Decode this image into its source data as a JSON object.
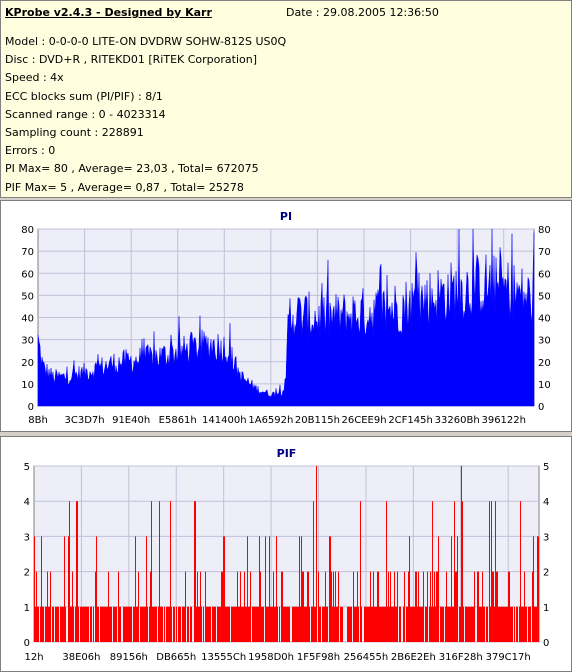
{
  "header": {
    "title": "KProbe v2.4.3 - Designed by Karr",
    "date": "Date : 29.08.2005 12:36:50"
  },
  "info_lines": [
    "Model : 0-0-0-0 LITE-ON DVDRW SOHW-812S  US0Q",
    "Disc : DVD+R , RITEKD01 [RiTEK Corporation]",
    "Speed : 4x",
    "ECC blocks sum (PI/PIF) : 8/1",
    "Scanned range : 0 - 4023314",
    "Sampling count : 228891",
    "Errors : 0",
    "PI Max= 80 , Average= 23,03 , Total= 672075",
    "PIF Max= 5 , Average= 0,87 , Total= 25278"
  ],
  "colors": {
    "pi_fill": "#0000ff",
    "pif_fill": "#ff0000",
    "plot_bg": "#eeeef8",
    "grid": "#c0c0d8"
  },
  "chart_data": [
    {
      "type": "area",
      "title": "PI",
      "xlabel": "",
      "ylabel": "",
      "ylim": [
        0,
        80
      ],
      "yticks": [
        0,
        10,
        20,
        30,
        40,
        50,
        60,
        70,
        80
      ],
      "xticks": [
        "8Bh",
        "3C3D7h",
        "91E40h",
        "E5861h",
        "141400h",
        "1A6592h",
        "20B115h",
        "26CEE9h",
        "2CF145h",
        "33260Bh",
        "396122h"
      ],
      "grid": true,
      "series": [
        {
          "x_fraction": [
            0.0,
            0.01,
            0.03,
            0.06,
            0.1,
            0.15,
            0.2,
            0.25,
            0.3,
            0.35,
            0.38,
            0.41,
            0.44,
            0.47,
            0.49,
            0.5,
            0.505,
            0.55,
            0.6,
            0.65,
            0.7,
            0.75,
            0.8,
            0.85,
            0.9,
            0.95,
            1.0
          ],
          "values": [
            34,
            20,
            15,
            15,
            18,
            22,
            24,
            26,
            29,
            32,
            30,
            15,
            9,
            6,
            7,
            12,
            48,
            46,
            46,
            48,
            50,
            53,
            57,
            60,
            63,
            60,
            55
          ]
        }
      ]
    },
    {
      "type": "bar",
      "title": "PIF",
      "xlabel": "",
      "ylabel": "",
      "ylim": [
        0,
        5
      ],
      "yticks": [
        0,
        1,
        2,
        3,
        4,
        5
      ],
      "xticks": [
        "12h",
        "38E06h",
        "89156h",
        "DB665h",
        "13555Ch",
        "1958D0h",
        "1F5F98h",
        "256455h",
        "2B6E2Eh",
        "316F28h",
        "379C17h"
      ],
      "grid": true,
      "series": [
        {
          "x_fraction": [
            0.0,
            0.1,
            0.2,
            0.3,
            0.4,
            0.5,
            0.52,
            0.6,
            0.7,
            0.8,
            0.9,
            1.0
          ],
          "values": [
            1,
            1,
            1,
            1.2,
            1.2,
            0.8,
            1.6,
            1.6,
            1.7,
            1.8,
            1.8,
            1.8
          ],
          "max": 5
        }
      ]
    }
  ]
}
